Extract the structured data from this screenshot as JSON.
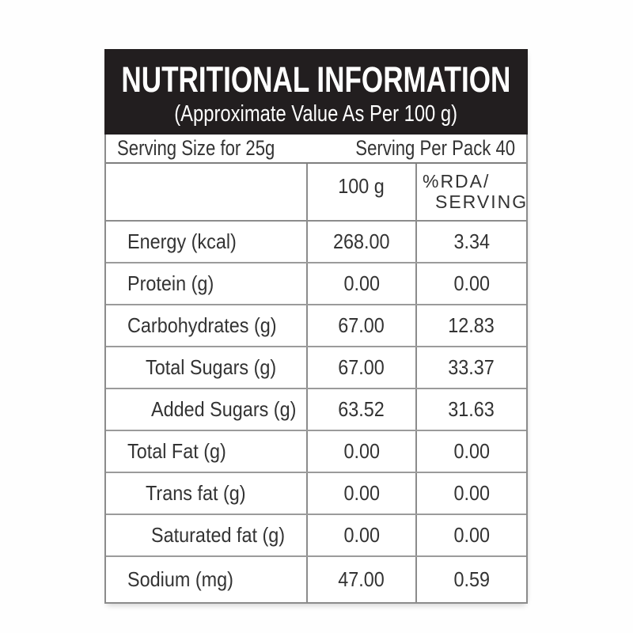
{
  "header": {
    "title": "NUTRITIONAL INFORMATION",
    "subtitle": "(Approximate Value As Per 100 g)"
  },
  "serving": {
    "size": "Serving Size for 25g",
    "per_pack": "Serving Per Pack 40"
  },
  "table": {
    "column_headers": {
      "nutrient": "",
      "per_100g": "100 g",
      "rda_line1": "%RDA/",
      "rda_line2": "SERVING"
    },
    "rows": [
      {
        "label": "Energy (kcal)",
        "per_100g": "268.00",
        "rda_per_serving": "3.34"
      },
      {
        "label": "Protein (g)",
        "per_100g": "0.00",
        "rda_per_serving": "0.00"
      },
      {
        "label": "Carbohydrates (g)",
        "per_100g": "67.00",
        "rda_per_serving": "12.83"
      },
      {
        "label": "Total Sugars (g)",
        "per_100g": "67.00",
        "rda_per_serving": "33.37"
      },
      {
        "label": "Added Sugars (g)",
        "per_100g": "63.52",
        "rda_per_serving": "31.63"
      },
      {
        "label": "Total Fat (g)",
        "per_100g": "0.00",
        "rda_per_serving": "0.00"
      },
      {
        "label": "Trans fat (g)",
        "per_100g": "0.00",
        "rda_per_serving": "0.00"
      },
      {
        "label": "Saturated fat (g)",
        "per_100g": "0.00",
        "rda_per_serving": "0.00"
      },
      {
        "label": "Sodium (mg)",
        "per_100g": "47.00",
        "rda_per_serving": "0.59"
      }
    ]
  },
  "colors": {
    "header_background": "#221e1f",
    "header_text": "#ffffff",
    "body_text": "#333333",
    "border": "#8c8c8c"
  }
}
